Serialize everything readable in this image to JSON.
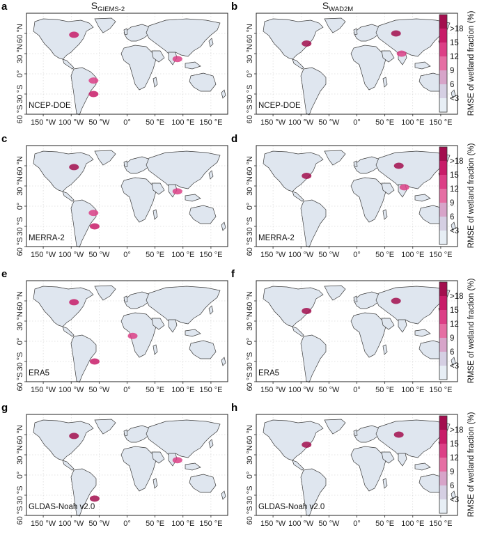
{
  "columns": [
    {
      "title_main": "S",
      "title_sub": "GIEMS-2"
    },
    {
      "title_main": "S",
      "title_sub": "WAD2M"
    }
  ],
  "panels": [
    {
      "label": "a",
      "dataset": "NCEP-DOE",
      "product": "GIEMS-2"
    },
    {
      "label": "b",
      "dataset": "NCEP-DOE",
      "product": "WAD2M"
    },
    {
      "label": "c",
      "dataset": "MERRA-2",
      "product": "GIEMS-2"
    },
    {
      "label": "d",
      "dataset": "MERRA-2",
      "product": "WAD2M"
    },
    {
      "label": "e",
      "dataset": "ERA5",
      "product": "GIEMS-2"
    },
    {
      "label": "f",
      "dataset": "ERA5",
      "product": "WAD2M"
    },
    {
      "label": "g",
      "dataset": "GLDAS-Noah v2.0",
      "product": "GIEMS-2"
    },
    {
      "label": "h",
      "dataset": "GLDAS-Noah v2.0",
      "product": "WAD2M"
    }
  ],
  "axes": {
    "x_ticks": [
      "150 °W",
      "100 °W",
      "50 °W",
      "0°",
      "50 °E",
      "100 °E",
      "150 °E"
    ],
    "y_ticks": [
      "60 °N",
      "30 °N",
      "0°",
      "30 °S",
      "60 °S"
    ]
  },
  "colorbar": {
    "title": "RMSE of wetland fraction (%)",
    "labels": [
      ">18",
      "15",
      "12",
      "9",
      "6",
      "<3"
    ],
    "colors": [
      "#a30e4e",
      "#c81c68",
      "#dc3f86",
      "#e56ea3",
      "#d7a4c9",
      "#d5cfe3",
      "#e7eef5"
    ]
  },
  "chart_data": {
    "type": "heatmap",
    "description_type": "global maps",
    "variable": "RMSE of wetland fraction (%)",
    "x_ticks_lon": [
      -150,
      -100,
      -50,
      0,
      50,
      100,
      150
    ],
    "y_ticks_lat": [
      60,
      30,
      0,
      -30,
      -60
    ],
    "xlim": [
      -180,
      180
    ],
    "ylim": [
      -60,
      90
    ],
    "color_bins": [
      "<3",
      "6",
      "9",
      "12",
      "15",
      ">18"
    ],
    "hotspots": [
      {
        "panel": "a",
        "regions": [
          {
            "lon": -95,
            "lat": 58,
            "value": 15
          },
          {
            "lon": -60,
            "lat": -10,
            "value": 12
          },
          {
            "lon": -60,
            "lat": -30,
            "value": 15
          },
          {
            "lon": 90,
            "lat": 22,
            "value": 12
          }
        ]
      },
      {
        "panel": "b",
        "regions": [
          {
            "lon": -90,
            "lat": 45,
            "value": 18
          },
          {
            "lon": 70,
            "lat": 60,
            "value": 18
          },
          {
            "lon": 80,
            "lat": 30,
            "value": 12
          }
        ]
      },
      {
        "panel": "c",
        "regions": [
          {
            "lon": -95,
            "lat": 58,
            "value": 18
          },
          {
            "lon": -60,
            "lat": -10,
            "value": 12
          },
          {
            "lon": -58,
            "lat": -30,
            "value": 15
          },
          {
            "lon": 90,
            "lat": 22,
            "value": 12
          }
        ]
      },
      {
        "panel": "d",
        "regions": [
          {
            "lon": -90,
            "lat": 45,
            "value": 18
          },
          {
            "lon": 75,
            "lat": 60,
            "value": 18
          },
          {
            "lon": 85,
            "lat": 28,
            "value": 12
          }
        ]
      },
      {
        "panel": "e",
        "regions": [
          {
            "lon": -95,
            "lat": 58,
            "value": 15
          },
          {
            "lon": -58,
            "lat": -30,
            "value": 15
          },
          {
            "lon": 10,
            "lat": 8,
            "value": 12
          }
        ]
      },
      {
        "panel": "f",
        "regions": [
          {
            "lon": -90,
            "lat": 45,
            "value": 18
          },
          {
            "lon": 70,
            "lat": 60,
            "value": 18
          }
        ]
      },
      {
        "panel": "g",
        "regions": [
          {
            "lon": -95,
            "lat": 58,
            "value": 18
          },
          {
            "lon": -58,
            "lat": -35,
            "value": 18
          },
          {
            "lon": 90,
            "lat": 22,
            "value": 12
          }
        ]
      },
      {
        "panel": "h",
        "regions": [
          {
            "lon": -90,
            "lat": 45,
            "value": 18
          },
          {
            "lon": 75,
            "lat": 60,
            "value": 18
          }
        ]
      }
    ]
  }
}
